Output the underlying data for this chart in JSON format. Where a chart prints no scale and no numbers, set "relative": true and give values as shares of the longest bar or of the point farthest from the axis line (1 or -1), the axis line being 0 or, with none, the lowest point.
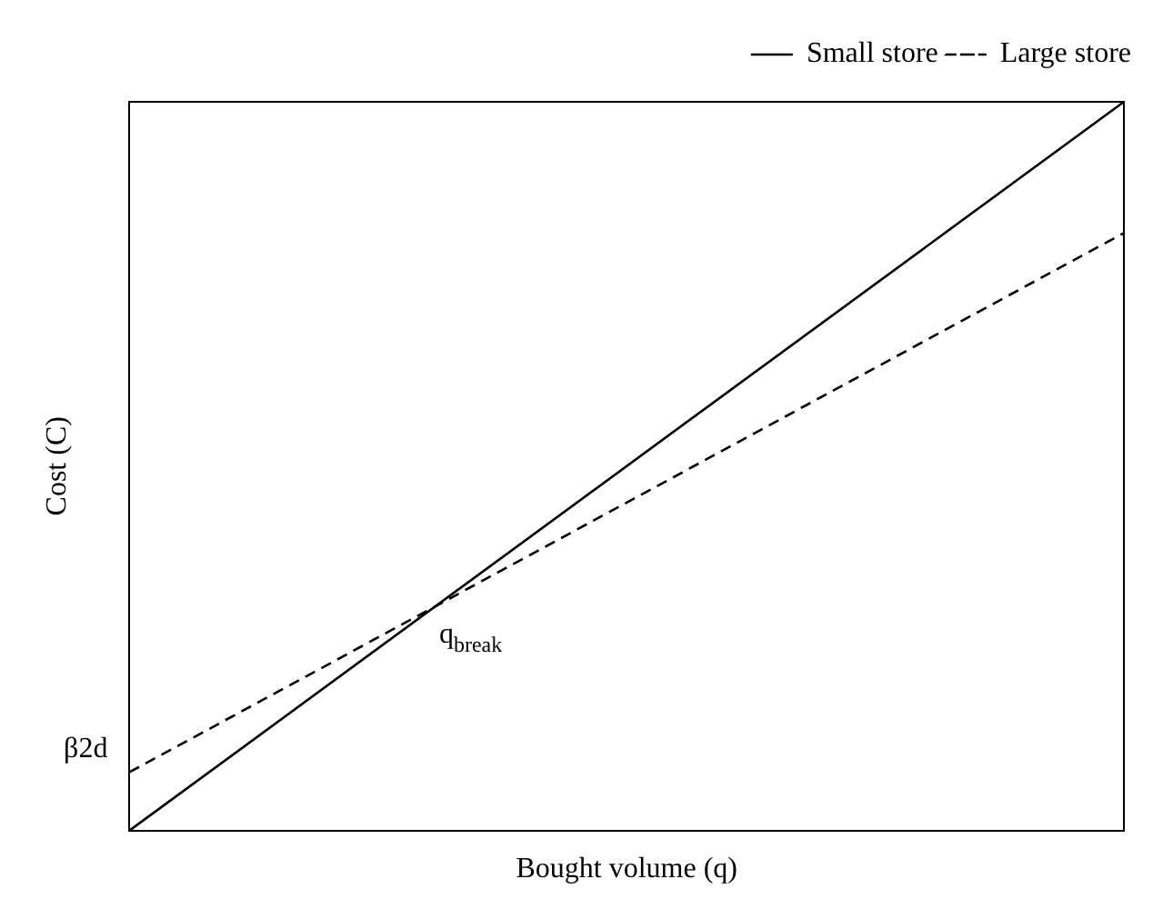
{
  "chart_data": {
    "type": "line",
    "relative": true,
    "xlabel": "Bought volume (q)",
    "ylabel": "Cost (C)",
    "categories": [
      null,
      null
    ],
    "series": [
      {
        "name": "Small store",
        "color": "#000000",
        "values": [
          0,
          1
        ],
        "line_style": "solid"
      },
      {
        "name": "Large store",
        "color": "#000000",
        "values": [
          0.08,
          0.82
        ],
        "line_style": "dashed"
      }
    ],
    "legend": "top right",
    "marker": "none",
    "grid": false,
    "annotations": [
      "q$_{break}$",
      "β2d"
    ]
  }
}
